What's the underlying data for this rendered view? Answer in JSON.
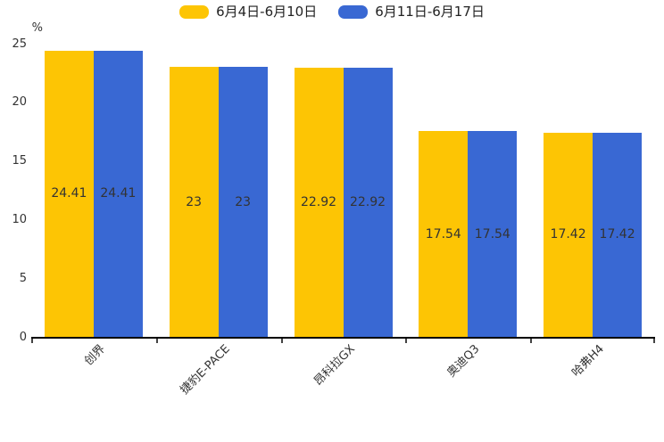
{
  "chart_data": {
    "type": "bar",
    "title": "",
    "unit_label": "%",
    "categories": [
      "创界",
      "捷豹E-PACE",
      "昂科拉GX",
      "奥迪Q3",
      "哈弗H4"
    ],
    "series": [
      {
        "name": "6月4日-6月10日",
        "color": "#FDC504",
        "values": [
          24.41,
          23,
          22.92,
          17.54,
          17.42
        ],
        "labels": [
          "24.41",
          "23",
          "22.92",
          "17.54",
          "17.42"
        ]
      },
      {
        "name": "6月11日-6月17日",
        "color": "#3968D3",
        "values": [
          24.41,
          23,
          22.92,
          17.54,
          17.42
        ],
        "labels": [
          "24.41",
          "23",
          "22.92",
          "17.54",
          "17.42"
        ]
      }
    ],
    "ylim": [
      0,
      25
    ],
    "yticks": [
      0,
      5,
      10,
      15,
      20,
      25
    ],
    "grid": false,
    "legend_position": "top",
    "value_label_position": "inside-center",
    "bar_label_color": "#333333",
    "axis_color": "#000000",
    "tick_color": "#444444",
    "text_color": "#333333"
  }
}
